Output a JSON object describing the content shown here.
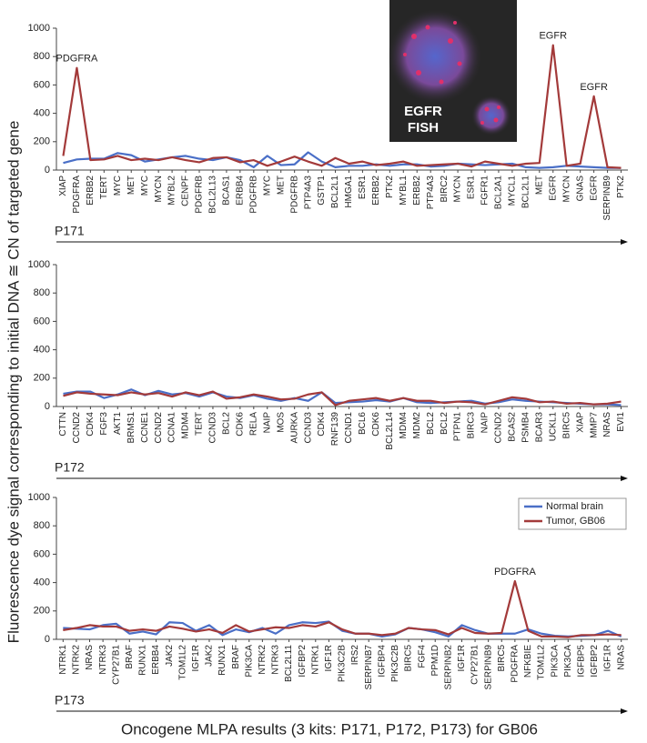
{
  "ylabel": "Fluorescence dye signal corresponding to initial DNA ≅ CN of targeted gene",
  "xlabel": "Oncogene MLPA results (3 kits: P171, P172, P173) for GB06",
  "chart_data": [
    {
      "type": "line",
      "kit": "P171",
      "inset_text": [
        "EGFR",
        "FISH"
      ],
      "categories": [
        "XIAP",
        "PDGFRA",
        "ERBB2",
        "TERT",
        "MYC",
        "MET",
        "MYC",
        "MYCN",
        "MYBL2",
        "CENPF",
        "PDGFRB",
        "BCL2L13",
        "BCAS1",
        "ERBB4",
        "PDGFRB",
        "MYC",
        "MET",
        "PDGFRB",
        "PTP4A3",
        "GSTP1",
        "BCL2L1",
        "HMGA1",
        "ESR1",
        "ERBB2",
        "PTK2",
        "MYBL1",
        "ERBB2",
        "PTP4A3",
        "BIRC2",
        "MYCN",
        "ESR1",
        "FGFR1",
        "BCL2A1",
        "MYCL1",
        "BCL2L1",
        "MET",
        "EGFR",
        "MYCN",
        "GNAS",
        "EGFR",
        "SERPINB9",
        "PTK2"
      ],
      "series": [
        {
          "color": "#4a6fc7",
          "values": [
            50,
            75,
            80,
            80,
            120,
            105,
            60,
            75,
            90,
            100,
            80,
            70,
            90,
            70,
            20,
            100,
            35,
            40,
            125,
            60,
            20,
            30,
            30,
            40,
            30,
            40,
            40,
            25,
            30,
            45,
            40,
            35,
            40,
            45,
            20,
            15,
            20,
            30,
            25,
            20,
            15,
            15
          ]
        },
        {
          "color": "#a33a3a",
          "values": [
            100,
            720,
            70,
            75,
            100,
            70,
            80,
            70,
            90,
            70,
            55,
            85,
            90,
            55,
            70,
            30,
            60,
            95,
            60,
            30,
            85,
            45,
            60,
            35,
            45,
            60,
            30,
            35,
            40,
            45,
            25,
            60,
            45,
            30,
            45,
            50,
            880,
            30,
            45,
            520,
            20,
            15
          ]
        }
      ],
      "annotations": [
        {
          "text": "PDGFRA",
          "category_index": 1
        },
        {
          "text": "EGFR",
          "category_index": 36
        },
        {
          "text": "EGFR",
          "category_index": 39
        }
      ],
      "ylim": [
        0,
        1000
      ],
      "yticks": [
        0,
        200,
        400,
        600,
        800,
        1000
      ]
    },
    {
      "type": "line",
      "kit": "P172",
      "categories": [
        "CTTN",
        "CCND2",
        "CDK4",
        "FGF3",
        "AKT1",
        "BRMS1",
        "CCNE1",
        "CCND2",
        "CCNA1",
        "MDM4",
        "TERT",
        "CCND3",
        "BCL2",
        "CDK6",
        "RELA",
        "NAIP",
        "MOS",
        "AURKA",
        "CCND3",
        "CDK4",
        "RNF139",
        "CCND1",
        "BCL6",
        "CDK6",
        "BCL2L14",
        "MDM4",
        "MDM2",
        "BCL2",
        "BCL2",
        "PTPN1",
        "BIRC3",
        "NAIP",
        "CCND2",
        "BCAS2",
        "PSMB4",
        "BCAR3",
        "UCKL1",
        "BIRC5",
        "XIAP",
        "MMP7",
        "NRAS",
        "EVI1"
      ],
      "series": [
        {
          "color": "#4a6fc7",
          "values": [
            90,
            105,
            105,
            60,
            85,
            120,
            80,
            110,
            85,
            95,
            70,
            100,
            70,
            60,
            80,
            55,
            40,
            60,
            40,
            100,
            25,
            30,
            35,
            45,
            35,
            60,
            30,
            25,
            30,
            35,
            40,
            20,
            30,
            50,
            40,
            35,
            30,
            25,
            20,
            15,
            15,
            10
          ]
        },
        {
          "color": "#a33a3a",
          "values": [
            75,
            100,
            90,
            85,
            80,
            100,
            85,
            95,
            70,
            100,
            80,
            105,
            55,
            65,
            85,
            70,
            50,
            55,
            85,
            100,
            10,
            40,
            50,
            60,
            40,
            60,
            40,
            40,
            25,
            35,
            30,
            15,
            40,
            65,
            55,
            30,
            35,
            20,
            25,
            15,
            20,
            35
          ]
        }
      ],
      "ylim": [
        0,
        1000
      ],
      "yticks": [
        0,
        200,
        400,
        600,
        800,
        1000
      ]
    },
    {
      "type": "line",
      "kit": "P173",
      "legend": "upper right",
      "categories": [
        "NTRK1",
        "NTRK2",
        "NRAS",
        "NTRK3",
        "CYP27B1",
        "BRAF",
        "RUNX1",
        "ERBB4",
        "JAK2",
        "TOM1L2",
        "IGF1R",
        "JAK2",
        "RUNX1",
        "BRAF",
        "PIK3CA",
        "NTRK2",
        "NTRK3",
        "BCL2L11",
        "IGFBP2",
        "NTRK1",
        "IGF1R",
        "PIK3C2B",
        "IRS2",
        "SERPINB7",
        "IGFBP4",
        "PIK3C2B",
        "BIRC5",
        "FGF4",
        "PPM1D",
        "SERPINB2",
        "IGF1R",
        "CYP27B1",
        "SERPINB9",
        "BIRC5",
        "PDGFRA",
        "NFKBIE",
        "TOM1L2",
        "PIK3CA",
        "PIK3CA",
        "IGFBP5",
        "IGFBP2",
        "IGF1R",
        "NRAS"
      ],
      "series": [
        {
          "name": "Normal brain",
          "color": "#4a6fc7",
          "values": [
            80,
            75,
            70,
            100,
            110,
            40,
            55,
            35,
            120,
            115,
            60,
            100,
            30,
            70,
            50,
            80,
            40,
            100,
            120,
            115,
            125,
            60,
            40,
            40,
            20,
            35,
            80,
            70,
            50,
            20,
            100,
            65,
            40,
            40,
            40,
            70,
            40,
            25,
            20,
            25,
            30,
            60,
            20
          ]
        },
        {
          "name": "Tumor, GB06",
          "color": "#a33a3a",
          "values": [
            65,
            80,
            100,
            90,
            90,
            60,
            70,
            60,
            90,
            75,
            55,
            70,
            45,
            100,
            55,
            70,
            85,
            80,
            100,
            90,
            120,
            70,
            40,
            40,
            30,
            40,
            80,
            70,
            65,
            35,
            80,
            45,
            40,
            45,
            410,
            60,
            20,
            20,
            15,
            30,
            30,
            35,
            30
          ]
        }
      ],
      "annotations": [
        {
          "text": "PDGFRA",
          "category_index": 34
        }
      ],
      "ylim": [
        0,
        1000
      ],
      "yticks": [
        0,
        200,
        400,
        600,
        800,
        1000
      ]
    }
  ]
}
